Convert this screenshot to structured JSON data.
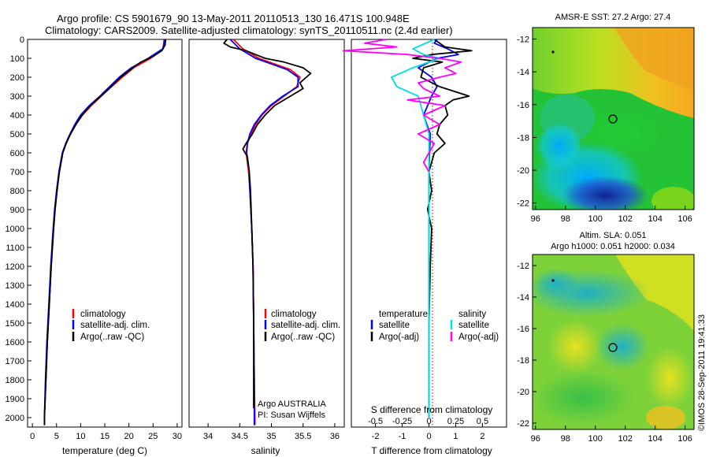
{
  "header": {
    "line1": "Argo profile: CS 5901679_90 13-May-2011 20110513_130 16.471S 100.948E",
    "line2": "Climatology: CARS2009. Satellite-adjusted climatology: synTS_20110511.nc (2.4d earlier)"
  },
  "colors": {
    "climatology": "#ff0000",
    "satellite": "#0000ff",
    "argo": "#000000",
    "salinity_satellite": "#00e0e0",
    "salinity_argo": "#ff00ff"
  },
  "chart_data": [
    {
      "type": "line",
      "id": "temperature",
      "xlabel": "temperature (deg C)",
      "ylabel": "depth",
      "xlim": [
        -1,
        31
      ],
      "ylim": [
        2050,
        0
      ],
      "xticks": [
        "0",
        "5",
        "10",
        "15",
        "20",
        "25",
        "30"
      ],
      "yticks": [
        "0",
        "100",
        "200",
        "300",
        "400",
        "500",
        "600",
        "700",
        "800",
        "900",
        "1000",
        "1100",
        "1200",
        "1300",
        "1400",
        "1500",
        "1600",
        "1700",
        "1800",
        "1900",
        "2000"
      ],
      "legend": [
        "climatology",
        "satellite-adj. clim.",
        "Argo(..raw -QC)"
      ],
      "series": [
        {
          "name": "climatology",
          "depth": [
            0,
            50,
            100,
            150,
            200,
            250,
            300,
            350,
            400,
            450,
            500,
            550,
            600,
            700,
            800,
            900,
            1000,
            1200,
            1400,
            1600,
            1800,
            2000,
            2040
          ],
          "values": [
            27.3,
            27.1,
            24.5,
            21.0,
            18.6,
            16.4,
            14.3,
            12.2,
            10.4,
            9.0,
            7.9,
            7.0,
            6.3,
            5.6,
            5.1,
            4.7,
            4.4,
            3.9,
            3.5,
            3.1,
            2.8,
            2.5,
            2.5
          ]
        },
        {
          "name": "satellite-adj. clim.",
          "depth": [
            0,
            50,
            100,
            150,
            200,
            250,
            300,
            350,
            400,
            450,
            500,
            550,
            600,
            700,
            800,
            900,
            1000,
            1200,
            1400,
            1600,
            1800,
            2000,
            2040
          ],
          "values": [
            27.5,
            27.0,
            24.0,
            20.5,
            18.0,
            16.0,
            14.0,
            11.8,
            10.0,
            8.8,
            7.8,
            6.9,
            6.2,
            5.5,
            5.0,
            4.6,
            4.3,
            3.8,
            3.4,
            3.0,
            2.7,
            2.5,
            2.5
          ]
        },
        {
          "name": "Argo(..raw -QC)",
          "depth": [
            0,
            30,
            60,
            90,
            120,
            150,
            200,
            250,
            300,
            350,
            400,
            450,
            500,
            550,
            600,
            700,
            800,
            900,
            1000,
            1200,
            1400,
            1600,
            1800,
            2000,
            2040
          ],
          "values": [
            27.6,
            27.5,
            26.8,
            25.0,
            22.5,
            20.8,
            18.3,
            16.3,
            14.2,
            12.0,
            10.3,
            9.0,
            7.9,
            7.0,
            6.3,
            5.6,
            5.1,
            4.7,
            4.4,
            3.9,
            3.5,
            3.1,
            2.8,
            2.5,
            2.5
          ]
        }
      ]
    },
    {
      "type": "line",
      "id": "salinity",
      "xlabel": "salinity",
      "ylabel": "depth",
      "xlim": [
        33.7,
        36.15
      ],
      "ylim": [
        2050,
        0
      ],
      "xticks": [
        "34",
        "34.5",
        "35",
        "35.5",
        "36"
      ],
      "legend": [
        "climatology",
        "satellite-adj. clim.",
        "Argo(..raw -QC)"
      ],
      "series": [
        {
          "name": "climatology",
          "depth": [
            0,
            50,
            100,
            130,
            160,
            200,
            250,
            300,
            350,
            400,
            450,
            500,
            550,
            600,
            650,
            700,
            800,
            1000,
            1200,
            1500,
            1800,
            2000,
            2040
          ],
          "values": [
            34.4,
            34.55,
            34.8,
            35.05,
            35.3,
            35.45,
            35.4,
            35.2,
            35.0,
            34.85,
            34.75,
            34.68,
            34.62,
            34.6,
            34.62,
            34.64,
            34.66,
            34.69,
            34.71,
            34.72,
            34.73,
            34.74,
            34.74
          ]
        },
        {
          "name": "satellite-adj. clim.",
          "depth": [
            0,
            50,
            100,
            130,
            160,
            200,
            250,
            300,
            350,
            400,
            450,
            500,
            550,
            600,
            650,
            700,
            800,
            1000,
            1200,
            1500,
            1800,
            2000,
            2040
          ],
          "values": [
            34.35,
            34.5,
            34.75,
            35.0,
            35.25,
            35.42,
            35.42,
            35.18,
            34.98,
            34.84,
            34.73,
            34.66,
            34.62,
            34.61,
            34.63,
            34.65,
            34.66,
            34.69,
            34.71,
            34.72,
            34.73,
            34.73,
            34.73
          ]
        },
        {
          "name": "Argo(..raw -QC)",
          "depth": [
            0,
            20,
            40,
            60,
            80,
            100,
            120,
            150,
            180,
            200,
            230,
            260,
            300,
            350,
            400,
            450,
            500,
            550,
            580,
            620,
            700,
            800,
            1000,
            1200,
            1500,
            1800,
            1950
          ],
          "values": [
            34.3,
            34.25,
            34.35,
            34.6,
            34.75,
            34.9,
            35.2,
            35.5,
            35.62,
            35.55,
            35.45,
            35.5,
            35.3,
            35.05,
            34.9,
            34.78,
            34.7,
            34.6,
            34.55,
            34.62,
            34.65,
            34.67,
            34.69,
            34.71,
            34.72,
            34.72,
            34.72
          ]
        }
      ]
    },
    {
      "type": "line",
      "id": "differences",
      "xlabel": "T difference from climatology",
      "top_xlabel": "S difference from climatology",
      "xlim": [
        -2.9,
        2.9
      ],
      "ylim": [
        2050,
        0
      ],
      "xticks": [
        "-2",
        "-1",
        "0",
        "1",
        "2"
      ],
      "s_ticks": [
        "-0.5",
        "-0.25",
        "0",
        "0.25",
        "0.5"
      ],
      "legend_t_title": "temperature",
      "legend_s_title": "salinity",
      "legend": [
        "satellite",
        "Argo(-adj)",
        "satellite",
        "Argo(-adj)"
      ],
      "series": [
        {
          "name": "temperature satellite",
          "depth": [
            0,
            20,
            50,
            80,
            100,
            150,
            200,
            250,
            300,
            400,
            500,
            700,
            1000,
            1500,
            2000
          ],
          "values": [
            0.3,
            0.2,
            0.7,
            1.1,
            0.3,
            -0.4,
            0.1,
            0.3,
            0.1,
            -0.2,
            0.05,
            0.0,
            0.0,
            0.0,
            0.0
          ]
        },
        {
          "name": "temperature Argo(-adj)",
          "depth": [
            0,
            20,
            40,
            60,
            80,
            100,
            120,
            150,
            200,
            250,
            300,
            320,
            350,
            400,
            450,
            500,
            550,
            600,
            700,
            800,
            900,
            1000,
            1200,
            1500,
            1800,
            2000
          ],
          "values": [
            0.2,
            0.4,
            0.6,
            1.6,
            0.1,
            -0.6,
            0.5,
            -0.2,
            -0.3,
            0.4,
            1.5,
            0.9,
            0.6,
            0.7,
            0.4,
            0.3,
            0.6,
            0.2,
            0.0,
            0.1,
            -0.05,
            0.1,
            0.05,
            0.0,
            0.0,
            0.0
          ]
        },
        {
          "name": "salinity satellite",
          "depth": [
            0,
            50,
            80,
            100,
            150,
            200,
            250,
            300,
            400,
            500,
            700,
            1000,
            1500,
            2000
          ],
          "values": [
            0.05,
            -0.15,
            -0.05,
            0.1,
            -0.15,
            -0.35,
            -0.3,
            -0.1,
            -0.05,
            0.0,
            0.0,
            0.0,
            0.0,
            0.0
          ]
        },
        {
          "name": "salinity Argo(-adj)",
          "depth": [
            0,
            20,
            40,
            60,
            80,
            100,
            120,
            150,
            180,
            200,
            230,
            260,
            300,
            320,
            350,
            400,
            450,
            500,
            550,
            600,
            650,
            700
          ],
          "values": [
            -0.4,
            -0.6,
            -0.3,
            -0.8,
            -0.2,
            0.1,
            0.3,
            0.15,
            0.25,
            0.1,
            -0.1,
            -0.05,
            0.1,
            -0.2,
            0.15,
            -0.05,
            0.1,
            -0.1,
            0.05,
            0.0,
            -0.05,
            0.0
          ]
        }
      ]
    },
    {
      "type": "heatmap",
      "id": "sst_map",
      "title": "AMSR-E SST: 27.2 Argo: 27.4",
      "xticks": [
        "96",
        "98",
        "100",
        "102",
        "104",
        "106"
      ],
      "yticks": [
        "-12",
        "-14",
        "-16",
        "-18",
        "-20",
        "-22"
      ]
    },
    {
      "type": "heatmap",
      "id": "sla_map",
      "title_line1": "Altim. SLA: 0.051",
      "title_line2": "Argo h1000: 0.051 h2000: 0.034",
      "xticks": [
        "96",
        "98",
        "100",
        "102",
        "104",
        "106"
      ],
      "yticks": [
        "-12",
        "-14",
        "-16",
        "-18",
        "-20",
        "-22"
      ]
    }
  ],
  "annotations": {
    "platform": "Argo AUSTRALIA",
    "pi": "PI: Susan Wijffels",
    "credit": "©IMOS 28-Sep-2011 19:41:33"
  }
}
